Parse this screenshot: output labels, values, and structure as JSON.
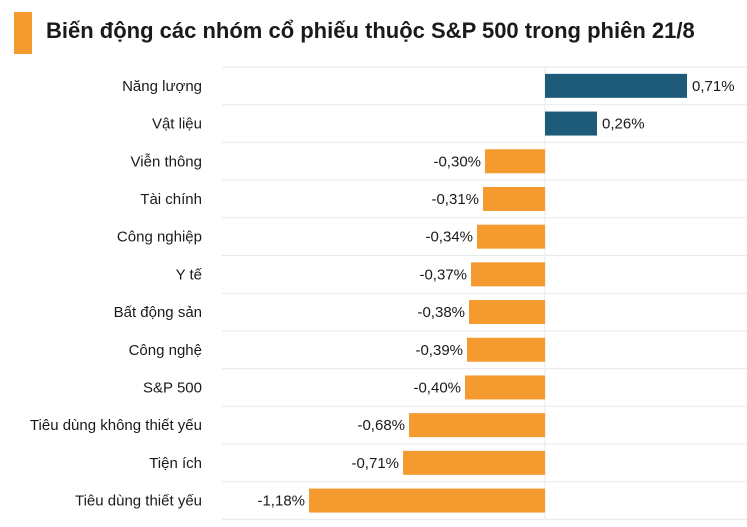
{
  "title": "Biến động các nhóm cổ phiếu thuộc S&P 500 trong phiên 21/8",
  "colors": {
    "accent": "#f59a2f",
    "positive": "#1d5b78",
    "negative": "#f59a2f",
    "grid": "#e9e9e9"
  },
  "chart_data": {
    "type": "bar",
    "orientation": "horizontal",
    "title": "Biến động các nhóm cổ phiếu thuộc S&P 500 trong phiên 21/8",
    "xlabel": "",
    "ylabel": "",
    "unit": "%",
    "grid": true,
    "xlim": [
      -1.18,
      0.71
    ],
    "categories": [
      "Năng lượng",
      "Vật liệu",
      "Viễn thông",
      "Tài chính",
      "Công nghiệp",
      "Y tế",
      "Bất động sản",
      "Công nghệ",
      "S&P 500",
      "Tiêu dùng không thiết yếu",
      "Tiện ích",
      "Tiêu dùng thiết yếu"
    ],
    "values": [
      0.71,
      0.26,
      -0.3,
      -0.31,
      -0.34,
      -0.37,
      -0.38,
      -0.39,
      -0.4,
      -0.68,
      -0.71,
      -1.18
    ],
    "labels": [
      "0,71%",
      "0,26%",
      "-0,30%",
      "-0,31%",
      "-0,34%",
      "-0,37%",
      "-0,38%",
      "-0,39%",
      "-0,40%",
      "-0,68%",
      "-0,71%",
      "-1,18%"
    ]
  }
}
